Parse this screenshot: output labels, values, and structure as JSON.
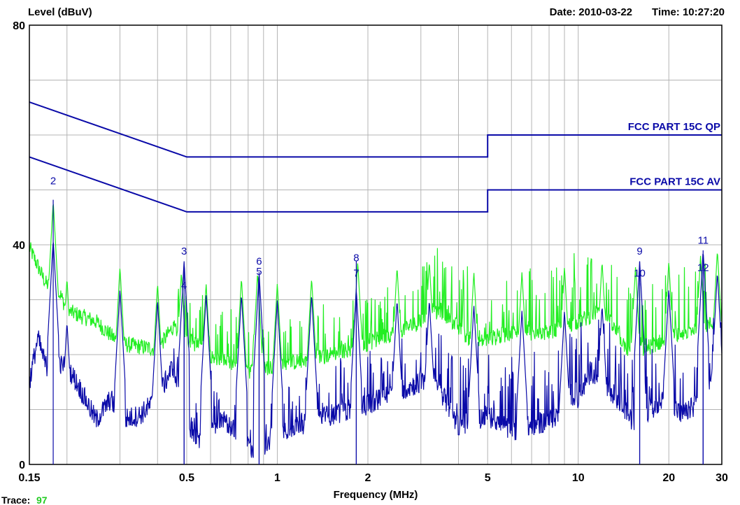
{
  "chart_data": {
    "type": "line",
    "ylabel": "Level (dBuV)",
    "xlabel": "Frequency (MHz)",
    "header_date": "Date: 2010-03-22",
    "header_time": "Time: 10:27:20",
    "trace_label": "Trace:",
    "trace_value": "97",
    "x_scale": "log",
    "xlim": [
      0.15,
      30
    ],
    "ylim": [
      0,
      80
    ],
    "grid": true,
    "y_ticks": [
      {
        "value": 0,
        "label": "0"
      },
      {
        "value": 40,
        "label": "40"
      },
      {
        "value": 80,
        "label": "80"
      }
    ],
    "x_ticks": [
      {
        "value": 0.15,
        "label": "0.15"
      },
      {
        "value": 0.5,
        "label": "0.5"
      },
      {
        "value": 1,
        "label": "1"
      },
      {
        "value": 2,
        "label": "2"
      },
      {
        "value": 5,
        "label": "5"
      },
      {
        "value": 10,
        "label": "10"
      },
      {
        "value": 20,
        "label": "20"
      },
      {
        "value": 30,
        "label": "30"
      }
    ],
    "limit_lines": [
      {
        "name": "FCC PART 15C QP",
        "color": "#0a0aa8",
        "points": [
          [
            0.15,
            66
          ],
          [
            0.5,
            56
          ],
          [
            5,
            56
          ],
          [
            5,
            60
          ],
          [
            30,
            60
          ]
        ]
      },
      {
        "name": "FCC PART 15C AV",
        "color": "#0a0aa8",
        "points": [
          [
            0.15,
            56
          ],
          [
            0.5,
            46
          ],
          [
            5,
            46
          ],
          [
            5,
            50
          ],
          [
            30,
            50
          ]
        ]
      }
    ],
    "series": [
      {
        "color": "#22ee22",
        "envelope": [
          [
            0.15,
            39.5
          ],
          [
            0.17,
            33
          ],
          [
            0.19,
            31
          ],
          [
            0.2,
            28
          ],
          [
            0.25,
            26
          ],
          [
            0.3,
            22
          ],
          [
            0.4,
            21
          ],
          [
            0.45,
            25
          ],
          [
            0.5,
            23
          ],
          [
            0.6,
            20
          ],
          [
            0.8,
            17
          ],
          [
            1,
            18
          ],
          [
            1.5,
            20
          ],
          [
            2,
            22
          ],
          [
            3,
            26
          ],
          [
            3.5,
            28
          ],
          [
            4.5,
            22
          ],
          [
            6,
            24
          ],
          [
            8,
            24
          ],
          [
            10,
            26
          ],
          [
            12,
            28
          ],
          [
            15,
            20
          ],
          [
            20,
            23
          ],
          [
            25,
            25
          ],
          [
            30,
            26
          ]
        ],
        "peaks": [
          [
            0.18,
            48
          ],
          [
            0.2,
            34
          ],
          [
            0.3,
            36
          ],
          [
            0.4,
            33
          ],
          [
            0.48,
            35
          ],
          [
            0.58,
            33
          ],
          [
            0.76,
            34
          ],
          [
            0.86,
            35
          ],
          [
            1.0,
            33
          ],
          [
            1.3,
            34
          ],
          [
            1.85,
            37
          ],
          [
            2.5,
            36
          ],
          [
            3.2,
            37
          ],
          [
            4.5,
            35
          ],
          [
            6.5,
            35
          ],
          [
            9,
            36
          ],
          [
            12,
            37
          ],
          [
            15.5,
            36
          ],
          [
            20,
            37
          ],
          [
            25.5,
            38
          ],
          [
            29,
            39
          ]
        ]
      },
      {
        "color": "#0a0aa8",
        "envelope": [
          [
            0.15,
            15
          ],
          [
            0.16,
            23
          ],
          [
            0.17,
            18
          ],
          [
            0.2,
            18
          ],
          [
            0.22,
            14
          ],
          [
            0.25,
            8
          ],
          [
            0.28,
            12
          ],
          [
            0.3,
            8
          ],
          [
            0.35,
            9
          ],
          [
            0.4,
            12
          ],
          [
            0.45,
            18
          ],
          [
            0.5,
            8
          ],
          [
            0.55,
            4
          ],
          [
            0.65,
            8
          ],
          [
            0.75,
            6
          ],
          [
            0.85,
            2
          ],
          [
            1,
            6
          ],
          [
            1.5,
            9
          ],
          [
            2,
            11
          ],
          [
            3,
            15
          ],
          [
            3.3,
            16
          ],
          [
            4,
            7
          ],
          [
            5,
            9
          ],
          [
            6,
            6
          ],
          [
            8,
            8
          ],
          [
            10,
            12
          ],
          [
            11,
            17
          ],
          [
            13,
            13
          ],
          [
            15,
            8
          ],
          [
            18,
            10
          ],
          [
            20,
            12
          ],
          [
            22,
            9
          ],
          [
            25,
            11
          ],
          [
            27,
            14
          ],
          [
            30,
            15
          ]
        ],
        "peaks": [
          [
            0.18,
            41
          ],
          [
            0.2,
            26
          ],
          [
            0.3,
            32
          ],
          [
            0.4,
            30
          ],
          [
            0.49,
            37
          ],
          [
            0.58,
            31
          ],
          [
            0.76,
            31
          ],
          [
            0.87,
            35
          ],
          [
            1.0,
            30
          ],
          [
            1.3,
            31
          ],
          [
            1.83,
            32
          ],
          [
            2.5,
            30
          ],
          [
            3.2,
            30
          ],
          [
            4.5,
            29
          ],
          [
            6.5,
            28
          ],
          [
            9,
            28
          ],
          [
            12,
            29
          ],
          [
            16,
            37
          ],
          [
            20,
            32
          ],
          [
            26,
            39
          ],
          [
            29,
            35
          ]
        ]
      }
    ],
    "markers": [
      {
        "label": "2",
        "freq": 0.18,
        "level": 48.2,
        "color": "#0a0aa8",
        "label_level": 51,
        "align": "center"
      },
      {
        "label": "3",
        "freq": 0.49,
        "level": 37,
        "color": "#0a0aa8",
        "label_level": 38.2,
        "align": "center"
      },
      {
        "label": "4",
        "freq": 0.49,
        "level": 29,
        "color": "#0a0aa8",
        "label_level": 32,
        "align": "center"
      },
      {
        "label": "6",
        "freq": 0.87,
        "level": 35,
        "color": "#0a0aa8",
        "label_level": 36.4,
        "align": "center"
      },
      {
        "label": "5",
        "freq": 0.87,
        "level": 32,
        "color": "#0a0aa8",
        "label_level": 34.5,
        "align": "center"
      },
      {
        "label": "8",
        "freq": 1.83,
        "level": 37,
        "color": "#0a0aa8",
        "label_level": 37,
        "align": "center"
      },
      {
        "label": "7",
        "freq": 1.83,
        "level": 32,
        "color": "#0a0aa8",
        "label_level": 34.2,
        "align": "center"
      },
      {
        "label": "9",
        "freq": 16,
        "level": 37,
        "color": "#0a0aa8",
        "label_level": 38.2,
        "align": "center"
      },
      {
        "label": "10",
        "freq": 16,
        "level": 33,
        "color": "#0a0aa8",
        "label_level": 34.2,
        "align": "center"
      },
      {
        "label": "11",
        "freq": 26,
        "level": 39,
        "color": "#0a0aa8",
        "label_level": 40.2,
        "align": "center"
      },
      {
        "label": "12",
        "freq": 26,
        "level": 35,
        "color": "#0a0aa8",
        "label_level": 35.2,
        "align": "center"
      }
    ]
  }
}
